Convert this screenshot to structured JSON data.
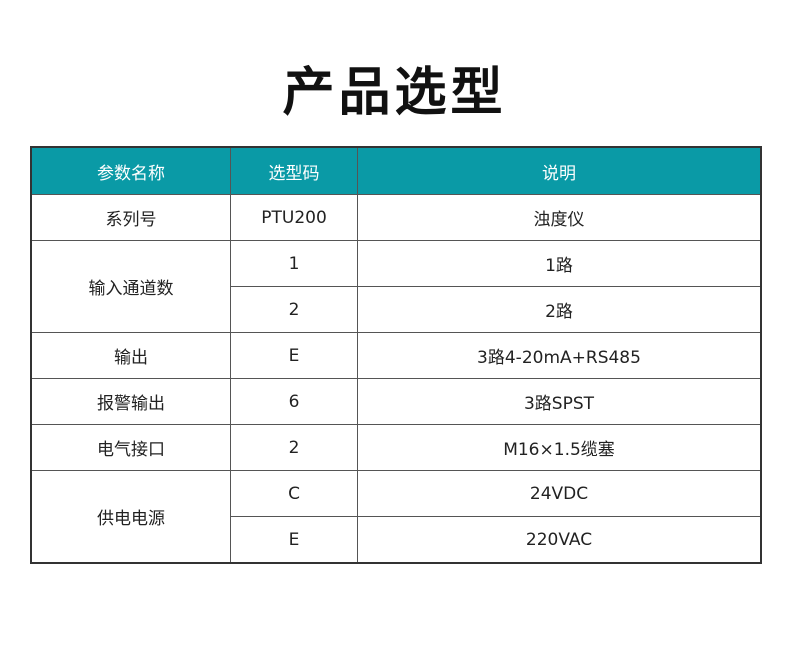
{
  "title": "产品选型",
  "headers": [
    "参数名称",
    "选型码",
    "说明"
  ],
  "header_color": "#0a9aa6",
  "rows": {
    "series": {
      "name": "系列号",
      "code": "PTU200",
      "desc": "浊度仪"
    },
    "inputs": {
      "name": "输入通道数",
      "options": [
        {
          "code": "1",
          "desc": "1路"
        },
        {
          "code": "2",
          "desc": "2路"
        }
      ]
    },
    "output": {
      "name": "输出",
      "code": "E",
      "desc": "3路4-20mA+RS485"
    },
    "alarm": {
      "name": "报警输出",
      "code": "6",
      "desc": "3路SPST"
    },
    "connector": {
      "name": "电气接口",
      "code": "2",
      "desc": "M16×1.5缆塞"
    },
    "power": {
      "name": "供电电源",
      "options": [
        {
          "code": "C",
          "desc": "24VDC"
        },
        {
          "code": "E",
          "desc": "220VAC"
        }
      ]
    }
  }
}
